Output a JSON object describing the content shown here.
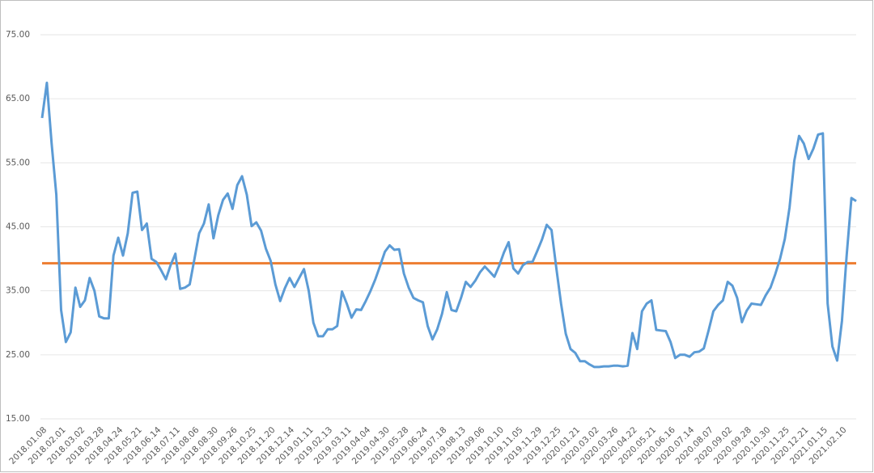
{
  "chart_data": {
    "type": "line",
    "categories": [
      "2018.01.08",
      null,
      null,
      null,
      "2018.02.01",
      null,
      null,
      null,
      "2018.03.02",
      null,
      null,
      null,
      "2018.03.28",
      null,
      null,
      null,
      "2018.04.24",
      null,
      null,
      null,
      "2018.05.21",
      null,
      null,
      null,
      "2018.06.14",
      null,
      null,
      null,
      "2018.07.11",
      null,
      null,
      null,
      "2018.08.06",
      null,
      null,
      null,
      "2018.08.30",
      null,
      null,
      null,
      "2018.09.26",
      null,
      null,
      null,
      "2018.10.25",
      null,
      null,
      null,
      "2018.11.20",
      null,
      null,
      null,
      "2018.12.14",
      null,
      null,
      null,
      "2019.01.11",
      null,
      null,
      null,
      "2019.02.13",
      null,
      null,
      null,
      "2019.03.11",
      null,
      null,
      null,
      "2019.04.04",
      null,
      null,
      null,
      "2019.04.30",
      null,
      null,
      null,
      "2019.05.28",
      null,
      null,
      null,
      "2019.06.24",
      null,
      null,
      null,
      "2019.07.18",
      null,
      null,
      null,
      "2019.08.13",
      null,
      null,
      null,
      "2019.09.06",
      null,
      null,
      null,
      "2019.10.10",
      null,
      null,
      null,
      "2019.11.05",
      null,
      null,
      null,
      "2019.11.29",
      null,
      null,
      null,
      "2019.12.25",
      null,
      null,
      null,
      "2020.01.21",
      null,
      null,
      null,
      "2020.03.02",
      null,
      null,
      null,
      "2020.03.26",
      null,
      null,
      null,
      "2020.04.22",
      null,
      null,
      null,
      "2020.05.21",
      null,
      null,
      null,
      "2020.06.16",
      null,
      null,
      null,
      "2020.07.14",
      null,
      null,
      null,
      "2020.08.07",
      null,
      null,
      null,
      "2020.09.02",
      null,
      null,
      null,
      "2020.09.28",
      null,
      null,
      null,
      "2020.10.30",
      null,
      null,
      null,
      "2020.11.25",
      null,
      null,
      null,
      "2020.12.21",
      null,
      null,
      null,
      "2021.01.15",
      null,
      null,
      null,
      "2021.02.10",
      null,
      null,
      null
    ],
    "values": [
      62,
      67.5,
      58,
      50,
      32,
      27,
      28.5,
      35.5,
      32.5,
      33.5,
      37,
      35,
      31,
      30.7,
      30.7,
      40.5,
      43.3,
      40.5,
      44,
      50.3,
      50.5,
      44.5,
      45.5,
      40,
      39.5,
      38.2,
      36.8,
      39,
      40.8,
      35.3,
      35.5,
      36,
      40,
      44,
      45.5,
      48.5,
      43.2,
      46.8,
      49.2,
      50.2,
      47.8,
      51.5,
      52.9,
      50,
      45.1,
      45.7,
      44.4,
      41.6,
      39.7,
      36,
      33.4,
      35.4,
      37,
      35.6,
      37,
      38.4,
      35,
      30,
      27.9,
      27.9,
      29,
      29,
      29.5,
      34.9,
      33,
      30.8,
      32.1,
      32,
      33.4,
      35,
      36.8,
      38.9,
      41.1,
      42.1,
      41.4,
      41.5,
      37.7,
      35.5,
      33.9,
      33.5,
      33.2,
      29.5,
      27.4,
      29,
      31.4,
      34.8,
      32,
      31.8,
      33.9,
      36.4,
      35.6,
      36.6,
      37.9,
      38.8,
      38,
      37.2,
      38.9,
      41,
      42.6,
      38.5,
      37.7,
      39,
      39.5,
      39.5,
      41.2,
      43,
      45.3,
      44.5,
      38.6,
      33,
      28.3,
      25.9,
      25.3,
      24,
      24,
      23.5,
      23.1,
      23.1,
      23.2,
      23.2,
      23.3,
      23.3,
      23.2,
      23.3,
      28.4,
      25.9,
      31.8,
      33,
      33.5,
      28.9,
      28.8,
      28.7,
      27,
      24.5,
      25,
      25,
      24.7,
      25.4,
      25.5,
      26,
      28.8,
      31.8,
      32.8,
      33.5,
      36.4,
      35.8,
      33.9,
      30.1,
      31.9,
      33,
      32.9,
      32.8,
      34.3,
      35.5,
      37.6,
      40,
      43.1,
      48,
      55.3,
      59.2,
      58,
      55.6,
      57.2,
      59.4,
      59.6,
      33,
      26.3,
      24.1,
      30.3,
      40.5,
      49.5,
      49
    ],
    "color": "#5b9bd5",
    "hlines": [
      {
        "value": 39.3,
        "color": "#ed7d31"
      }
    ],
    "ylim": [
      15,
      75
    ],
    "yticks": [
      {
        "value": 15,
        "label": "15.00"
      },
      {
        "value": 25,
        "label": "25.00"
      },
      {
        "value": 35,
        "label": "35.00"
      },
      {
        "value": 45,
        "label": "45.00"
      },
      {
        "value": 55,
        "label": "55.00"
      },
      {
        "value": 65,
        "label": "65.00"
      },
      {
        "value": 75,
        "label": "75.00"
      }
    ],
    "grid": true
  }
}
